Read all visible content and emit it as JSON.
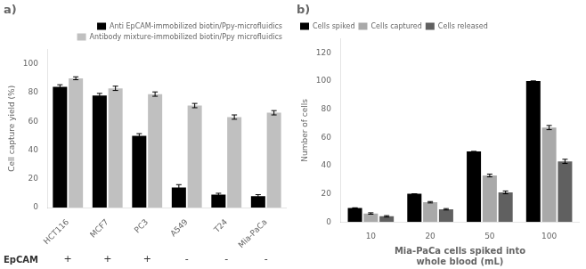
{
  "chart_data": [
    {
      "type": "bar",
      "title": "a)",
      "categories": [
        "HCT116",
        "MCF7",
        "PC3",
        "A549",
        "T24",
        "Mia-PaCa"
      ],
      "series": [
        {
          "name": "Anti EpCAM-immobilized biotin/Ppy-microfluidics",
          "color": "#000000",
          "values": [
            84,
            78,
            50,
            14,
            9,
            8
          ],
          "errors": [
            1.5,
            1.5,
            1.5,
            2.0,
            1.0,
            1.0
          ]
        },
        {
          "name": "Antibody mixture-immobilized biotin/Ppy microfluidics",
          "color": "#c0c0c0",
          "values": [
            90,
            83,
            79,
            71,
            63,
            66
          ],
          "errors": [
            1.0,
            1.5,
            1.5,
            1.5,
            1.5,
            1.5
          ]
        }
      ],
      "ylabel": "Cell capture yield (%)",
      "ylim": [
        0,
        110
      ],
      "yticks": [
        0,
        20,
        40,
        60,
        80,
        100
      ],
      "legend": "upper right",
      "grid": false,
      "annotations": [
        {
          "text": "EpCAM"
        },
        {
          "text": "+",
          "x": "HCT116"
        },
        {
          "text": "+",
          "x": "MCF7"
        },
        {
          "text": "+",
          "x": "PC3"
        },
        {
          "text": "-",
          "x": "A549"
        },
        {
          "text": "-",
          "x": "T24"
        },
        {
          "text": "-",
          "x": "Mia-PaCa"
        }
      ]
    },
    {
      "type": "bar",
      "title": "b)",
      "categories": [
        "10",
        "20",
        "50",
        "100"
      ],
      "series": [
        {
          "name": "Cells spiked",
          "color": "#000000",
          "values": [
            10,
            20,
            50,
            100
          ],
          "errors": [
            0,
            0,
            0,
            0
          ]
        },
        {
          "name": "Cells captured",
          "color": "#a9a9a9",
          "values": [
            6,
            14,
            33,
            67
          ],
          "errors": [
            0.5,
            0.5,
            1.0,
            1.5
          ]
        },
        {
          "name": "Cells released",
          "color": "#606060",
          "values": [
            4,
            9,
            21,
            43
          ],
          "errors": [
            0.5,
            0.5,
            1.0,
            1.5
          ]
        }
      ],
      "ylabel": "Number of cells",
      "xlabel": "Mia-PaCa cells spiked into\nwhole blood (mL)",
      "ylim": [
        0,
        130
      ],
      "yticks": [
        0,
        20,
        40,
        60,
        80,
        100,
        120
      ],
      "legend": "upper left",
      "grid": false
    }
  ]
}
